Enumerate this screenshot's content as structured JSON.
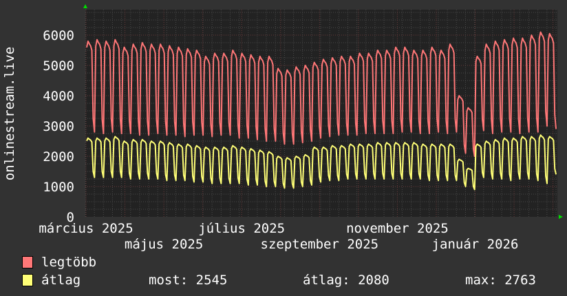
{
  "chart_data": {
    "type": "line",
    "ylabel": "onlinestream.live",
    "ylim": [
      0,
      6840
    ],
    "yticks": [
      0,
      1000,
      2000,
      3000,
      4000,
      5000,
      6000
    ],
    "xtick_labels": [
      "március 2025",
      "május 2025",
      "július 2025",
      "szeptember 2025",
      "november 2025",
      "január 2026"
    ],
    "grid": true,
    "legend_placement": "bottom-left",
    "series": [
      {
        "name": "legtöbb",
        "color": "#ff7777",
        "weekly_peak": [
          5800,
          5850,
          5800,
          5850,
          5600,
          5700,
          5750,
          5700,
          5700,
          5650,
          5600,
          5550,
          5500,
          5300,
          5400,
          5400,
          5500,
          5400,
          5350,
          5300,
          5300,
          4900,
          4850,
          4950,
          5000,
          5100,
          5200,
          5250,
          5300,
          5300,
          5400,
          5400,
          5500,
          5500,
          5600,
          5600,
          5500,
          5500,
          5600,
          5500,
          5700,
          4000,
          3600,
          5300,
          5700,
          5800,
          5850,
          5900,
          5900,
          6000,
          6100,
          6050
        ],
        "weekly_low": [
          2800,
          2750,
          2800,
          2750,
          2750,
          2700,
          2700,
          2750,
          2700,
          2700,
          2650,
          2700,
          2700,
          2650,
          2700,
          2700,
          2600,
          2600,
          2550,
          2500,
          2500,
          2400,
          2400,
          2450,
          2500,
          2600,
          2650,
          2700,
          2700,
          2700,
          2750,
          2750,
          2750,
          2750,
          2800,
          2800,
          2750,
          2750,
          2800,
          2750,
          2800,
          2100,
          2000,
          2850,
          2750,
          2800,
          2800,
          2750,
          2800,
          2800,
          3000,
          2900
        ]
      },
      {
        "name": "átlag",
        "color": "#ffff77",
        "weekly_peak": [
          2600,
          2600,
          2600,
          2650,
          2500,
          2550,
          2550,
          2500,
          2500,
          2450,
          2400,
          2400,
          2350,
          2300,
          2300,
          2300,
          2350,
          2300,
          2250,
          2200,
          2150,
          2000,
          1950,
          2000,
          2050,
          2300,
          2300,
          2350,
          2350,
          2400,
          2400,
          2400,
          2450,
          2450,
          2450,
          2450,
          2450,
          2400,
          2400,
          2400,
          2400,
          1900,
          1600,
          2400,
          2500,
          2550,
          2600,
          2600,
          2650,
          2650,
          2700,
          2650
        ],
        "weekly_low": [
          1300,
          1300,
          1300,
          1300,
          1250,
          1250,
          1250,
          1250,
          1200,
          1200,
          1200,
          1150,
          1150,
          1100,
          1100,
          1100,
          1100,
          1050,
          1050,
          1000,
          1000,
          950,
          950,
          1000,
          1050,
          1150,
          1200,
          1200,
          1250,
          1250,
          1250,
          1250,
          1250,
          1250,
          1250,
          1250,
          1250,
          1200,
          1200,
          1200,
          1200,
          1000,
          900,
          1300,
          1250,
          1250,
          1200,
          1250,
          1250,
          1200,
          1100,
          1400
        ]
      }
    ]
  },
  "legend": {
    "max_label": "legtöbb",
    "avg_label": "átlag",
    "now": "most: 2545",
    "avg": "átlag: 2080",
    "max": "max: 2763"
  }
}
